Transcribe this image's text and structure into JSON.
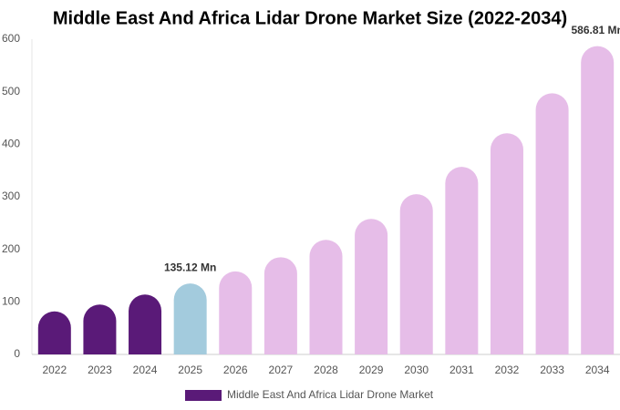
{
  "chart_data": {
    "type": "bar",
    "title": "Middle East And Africa Lidar Drone Market Size (2022-2034)",
    "categories": [
      "2022",
      "2023",
      "2024",
      "2025",
      "2026",
      "2027",
      "2028",
      "2029",
      "2030",
      "2031",
      "2032",
      "2033",
      "2034"
    ],
    "series": [
      {
        "name": "Middle East And Africa Lidar Drone Market",
        "color": "#5a1a78",
        "colors": [
          "#5a1a78",
          "#5a1a78",
          "#5a1a78",
          "#a3cbdd",
          "#e6bde8",
          "#e6bde8",
          "#e6bde8",
          "#e6bde8",
          "#e6bde8",
          "#e6bde8",
          "#e6bde8",
          "#e6bde8",
          "#e6bde8"
        ],
        "values": [
          82,
          95,
          114,
          135.12,
          158,
          185,
          218,
          258,
          305,
          357,
          421,
          497,
          586.81
        ],
        "value_labels": [
          null,
          null,
          null,
          "135.12 Mn",
          null,
          null,
          null,
          null,
          null,
          null,
          null,
          null,
          "586.81 Mn"
        ]
      }
    ],
    "ylim": [
      0,
      600
    ],
    "yticks": [
      0,
      100,
      200,
      300,
      400,
      500,
      600
    ],
    "grid": false
  }
}
